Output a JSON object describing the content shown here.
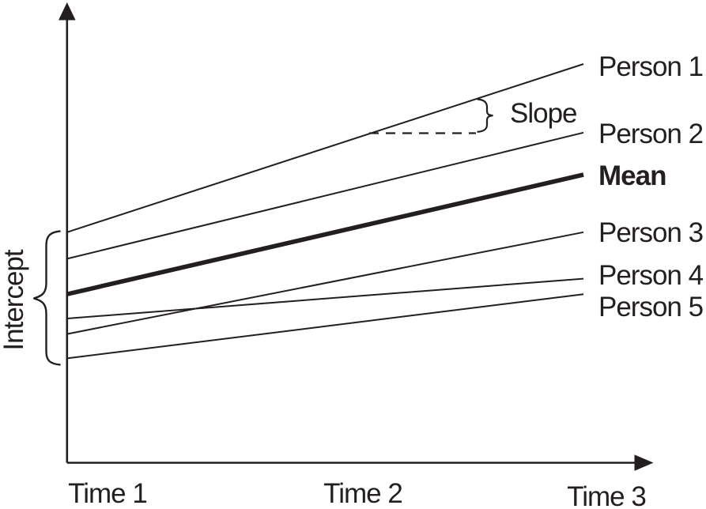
{
  "figure": {
    "ink_color": "#231f20",
    "background_color": "#ffffff"
  },
  "annotations": {
    "slope_label": "Slope",
    "intercept_label": "Intercept"
  },
  "chart_data": {
    "type": "line",
    "title": "",
    "xlabel": "",
    "ylabel": "",
    "x_categories": [
      "Time 1",
      "Time 2",
      "Time 3"
    ],
    "y_axis_ticks": [],
    "ylim_relative": [
      0,
      100
    ],
    "grid": false,
    "legend_position": "labels-at-right-line-ends",
    "series": [
      {
        "name": "Person 1",
        "values": [
          52,
          71,
          90
        ],
        "emphasis": "normal"
      },
      {
        "name": "Person 2",
        "values": [
          46,
          60.5,
          74.5
        ],
        "emphasis": "normal"
      },
      {
        "name": "Mean",
        "values": [
          38,
          51.5,
          65
        ],
        "emphasis": "bold"
      },
      {
        "name": "Person 3",
        "values": [
          29,
          40.5,
          52
        ],
        "emphasis": "normal"
      },
      {
        "name": "Person 4",
        "values": [
          32.5,
          37,
          41.5
        ],
        "emphasis": "normal"
      },
      {
        "name": "Person 5",
        "values": [
          23.5,
          31,
          38
        ],
        "emphasis": "normal"
      }
    ],
    "annotation_notes": {
      "slope_marked_on": "Person 1",
      "intercept_brace_spans": "vertical spread of trajectory intercepts at the y-axis"
    }
  }
}
